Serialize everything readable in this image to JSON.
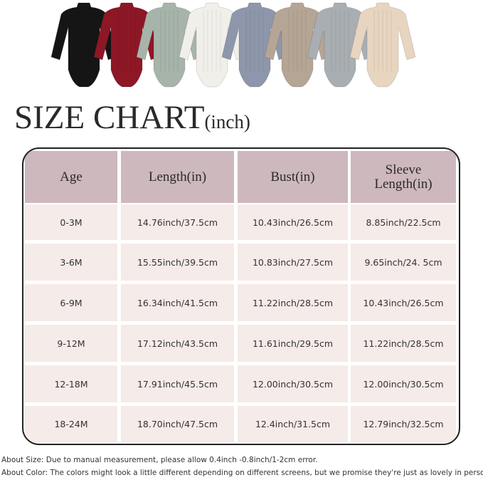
{
  "garment_colors": [
    "#151515",
    "#8e1726",
    "#a7b4aa",
    "#f1efea",
    "#8e96ab",
    "#b5a594",
    "#a9aeb3",
    "#e8d5c0"
  ],
  "title": {
    "main": "SIZE CHART",
    "unit": "(inch)"
  },
  "table": {
    "headers": [
      "Age",
      "Length(in)",
      "Bust(in)",
      "Sleeve Length(in)"
    ],
    "rows": [
      [
        "0-3M",
        "14.76inch/37.5cm",
        "10.43inch/26.5cm",
        "8.85inch/22.5cm"
      ],
      [
        "3-6M",
        "15.55inch/39.5cm",
        "10.83inch/27.5cm",
        "9.65inch/24. 5cm"
      ],
      [
        "6-9M",
        "16.34inch/41.5cm",
        "11.22inch/28.5cm",
        "10.43inch/26.5cm"
      ],
      [
        "9-12M",
        "17.12inch/43.5cm",
        "11.61inch/29.5cm",
        "11.22inch/28.5cm"
      ],
      [
        "12-18M",
        "17.91inch/45.5cm",
        "12.00inch/30.5cm",
        "12.00inch/30.5cm"
      ],
      [
        "18-24M",
        "18.70inch/47.5cm",
        "12.4inch/31.5cm",
        "12.79inch/32.5cm"
      ]
    ],
    "header_color": "#cdb8bd",
    "row_color": "#f5ebe9"
  },
  "notes": {
    "size": "About Size: Due to manual measurement, please allow 0.4inch -0.8inch/1-2cm error.",
    "color": "About Color: The colors might look a little different depending on different screens, but we promise they're just as lovely in person!"
  }
}
